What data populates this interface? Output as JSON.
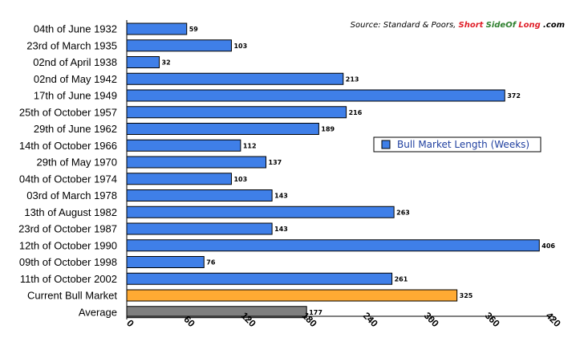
{
  "source": {
    "prefix": "Source: Standard & Poors, ",
    "brand_part1": "Short",
    "brand_part2": "SideOf",
    "brand_part3": "Long",
    "brand_suffix": ".com",
    "colors": {
      "brand_part1": "#e0202a",
      "brand_part2": "#2d7f2d",
      "brand_part3": "#e0202a"
    }
  },
  "legend": {
    "label": "Bull Market Length (Weeks)",
    "placement": "right-middle"
  },
  "colors": {
    "default_bar": "#3f7fe8",
    "current_bar": "#ffaa33",
    "average_bar": "#7f7f7f",
    "bar_stroke": "#000000"
  },
  "chart_data": {
    "type": "bar",
    "orientation": "horizontal",
    "categories": [
      "04th of June 1932",
      "23rd of March 1935",
      "02nd of April 1938",
      "02nd of May 1942",
      "17th of June 1949",
      "25th of October 1957",
      "29th of June 1962",
      "14th of October 1966",
      "29th of May 1970",
      "04th of October 1974",
      "03rd of March 1978",
      "13th of August 1982",
      "23rd of October 1987",
      "12th of October 1990",
      "09th of October 1998",
      "11th of October 2002",
      "Current Bull Market",
      "Average"
    ],
    "series": [
      {
        "name": "Bull Market Length (Weeks)",
        "values": [
          59,
          103,
          32,
          213,
          372,
          216,
          189,
          112,
          137,
          103,
          143,
          263,
          143,
          406,
          76,
          261,
          325,
          177
        ]
      }
    ],
    "value_labels": [
      "59",
      "103",
      "32",
      "213",
      "372",
      "216",
      "189",
      "112",
      "137",
      "103",
      "143",
      "263",
      "143",
      "406",
      "76",
      "261",
      "325",
      "177"
    ],
    "xlim": [
      0,
      420
    ],
    "xticks": [
      0,
      60,
      120,
      180,
      240,
      300,
      360,
      420
    ],
    "xtick_labels": [
      "0",
      "60",
      "120",
      "180",
      "240",
      "300",
      "360",
      "420"
    ],
    "grid": false,
    "title": "",
    "xlabel": "",
    "ylabel": ""
  }
}
